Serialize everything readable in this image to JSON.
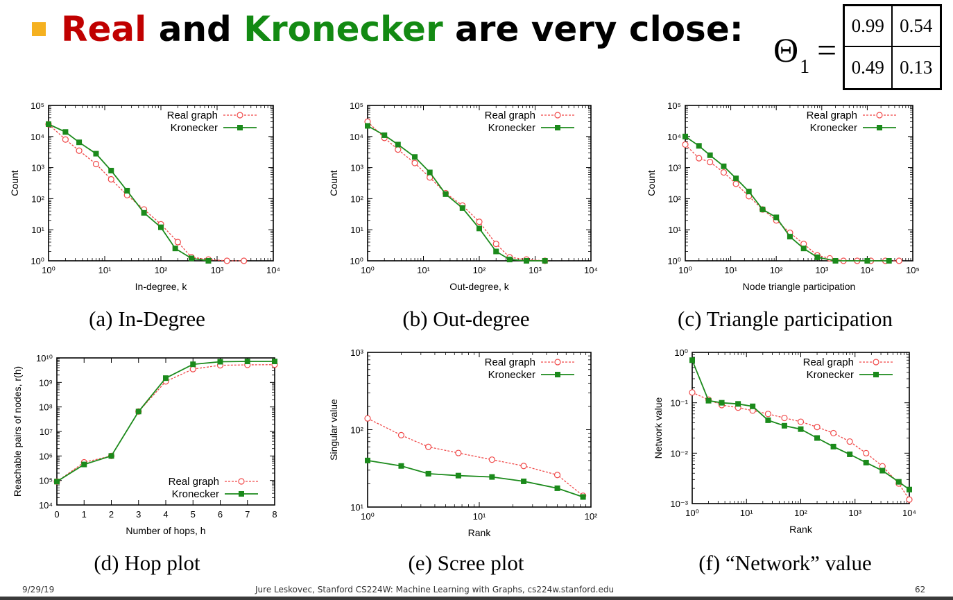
{
  "title": {
    "word1": "Real",
    "word2": " and ",
    "word3": "Kronecker",
    "word4": " are very close:"
  },
  "theta": {
    "symbol": "Θ",
    "subscript": "1",
    "equals": "=",
    "cells": [
      "0.99",
      "0.54",
      "0.49",
      "0.13"
    ]
  },
  "footer": {
    "date": "9/29/19",
    "center": "Jure Leskovec, Stanford CS224W: Machine Learning with Graphs, cs224w.stanford.edu",
    "page": "62"
  },
  "colors": {
    "real": "#f04848",
    "kronecker": "#1b8a1b",
    "bullet": "#f5b120",
    "title_red": "#c00000",
    "title_green": "#138a13"
  },
  "chart_data": [
    {
      "type": "line",
      "caption": "(a) In-Degree",
      "xlabel": "In-degree, k",
      "ylabel": "Count",
      "xscale": "log",
      "yscale": "log",
      "xlim": [
        1,
        10000
      ],
      "ylim": [
        1,
        100000
      ],
      "legend": "top-right",
      "legend_entries": [
        "Real graph",
        "Kronecker"
      ],
      "series": [
        {
          "name": "Real graph",
          "x": [
            1,
            2,
            3.5,
            7,
            13,
            25,
            50,
            100,
            200,
            350,
            700,
            1500,
            3000
          ],
          "y": [
            25000,
            8000,
            3500,
            1300,
            420,
            130,
            45,
            15,
            4,
            1.3,
            1.1,
            1,
            1
          ]
        },
        {
          "name": "Kronecker",
          "x": [
            1,
            2,
            3.5,
            7,
            13,
            25,
            50,
            100,
            180,
            350,
            700
          ],
          "y": [
            25000,
            14000,
            6500,
            2800,
            800,
            180,
            35,
            12,
            2.5,
            1.2,
            1
          ]
        }
      ]
    },
    {
      "type": "line",
      "caption": "(b) Out-degree",
      "xlabel": "Out-degree, k",
      "ylabel": "Count",
      "xscale": "log",
      "yscale": "log",
      "xlim": [
        1,
        10000
      ],
      "ylim": [
        1,
        100000
      ],
      "legend": "top-right",
      "legend_entries": [
        "Real graph",
        "Kronecker"
      ],
      "series": [
        {
          "name": "Real graph",
          "x": [
            1,
            2,
            3.5,
            7,
            13,
            25,
            50,
            100,
            200,
            350,
            700,
            1500
          ],
          "y": [
            30000,
            9000,
            3800,
            1400,
            480,
            150,
            60,
            18,
            3.5,
            1.3,
            1.1,
            1
          ]
        },
        {
          "name": "Kronecker",
          "x": [
            1,
            2,
            3.5,
            7,
            13,
            25,
            50,
            100,
            200,
            350,
            700,
            1500
          ],
          "y": [
            22000,
            11000,
            5500,
            2200,
            700,
            140,
            50,
            11,
            2,
            1.1,
            1,
            1
          ]
        }
      ]
    },
    {
      "type": "line",
      "caption": "(c) Triangle participation",
      "xlabel": "Node triangle participation",
      "ylabel": "Count",
      "xscale": "log",
      "yscale": "log",
      "xlim": [
        1,
        100000
      ],
      "ylim": [
        1,
        100000
      ],
      "legend": "top-right",
      "legend_entries": [
        "Real graph",
        "Kronecker"
      ],
      "series": [
        {
          "name": "Real graph",
          "x": [
            1,
            2,
            3.5,
            7,
            13,
            25,
            50,
            100,
            200,
            400,
            800,
            1500,
            3000,
            6000,
            12000,
            25000,
            50000
          ],
          "y": [
            5500,
            2000,
            1500,
            700,
            300,
            120,
            45,
            20,
            8,
            3.5,
            1.5,
            1.2,
            1,
            1,
            1,
            1,
            1
          ]
        },
        {
          "name": "Kronecker",
          "x": [
            1,
            2,
            3.5,
            7,
            13,
            25,
            50,
            100,
            200,
            400,
            800,
            2000,
            10000,
            30000
          ],
          "y": [
            10000,
            5000,
            2500,
            1100,
            450,
            170,
            45,
            25,
            6,
            2.5,
            1.3,
            1,
            1,
            1
          ]
        }
      ]
    },
    {
      "type": "line",
      "caption": "(d) Hop plot",
      "xlabel": "Number of hops, h",
      "ylabel": "Reachable pairs of nodes, r(h)",
      "xscale": "linear",
      "yscale": "log",
      "xlim": [
        0,
        8
      ],
      "ylim": [
        10000,
        10000000000
      ],
      "legend": "bottom-right",
      "legend_entries": [
        "Real graph",
        "Kronecker"
      ],
      "series": [
        {
          "name": "Real graph",
          "x": [
            0,
            1,
            2,
            3,
            4,
            5,
            6,
            7,
            8
          ],
          "y": [
            90000,
            550000,
            1000000,
            65000000,
            1100000000,
            3500000000,
            5000000000,
            5200000000,
            5300000000
          ]
        },
        {
          "name": "Kronecker",
          "x": [
            0,
            1,
            2,
            3,
            4,
            5,
            6,
            7,
            8
          ],
          "y": [
            90000,
            450000,
            1000000,
            65000000,
            1500000000,
            5500000000,
            7000000000,
            7200000000,
            7200000000
          ]
        }
      ]
    },
    {
      "type": "line",
      "caption": "(e) Scree plot",
      "xlabel": "Rank",
      "ylabel": "Singular value",
      "xscale": "log",
      "yscale": "log",
      "xlim": [
        1,
        100
      ],
      "ylim": [
        10,
        1000
      ],
      "legend": "top-right",
      "legend_entries": [
        "Real graph",
        "Kronecker"
      ],
      "series": [
        {
          "name": "Real graph",
          "x": [
            1,
            2,
            3.5,
            6.5,
            13,
            25,
            50,
            85
          ],
          "y": [
            140,
            85,
            60,
            50,
            41,
            34,
            26,
            14
          ]
        },
        {
          "name": "Kronecker",
          "x": [
            1,
            2,
            3.5,
            6.5,
            13,
            25,
            50,
            85
          ],
          "y": [
            40,
            34,
            27,
            25.5,
            24.5,
            21.5,
            17.5,
            13.5
          ]
        }
      ]
    },
    {
      "type": "line",
      "caption": "(f) “Network” value",
      "xlabel": "Rank",
      "ylabel": "Network value",
      "xscale": "log",
      "yscale": "log",
      "xlim": [
        1,
        10000
      ],
      "ylim": [
        0.001,
        1
      ],
      "legend": "top-right",
      "legend_entries": [
        "Real graph",
        "Kronecker"
      ],
      "series": [
        {
          "name": "Real graph",
          "x": [
            1,
            2,
            3.5,
            7,
            13,
            25,
            50,
            100,
            200,
            400,
            800,
            1600,
            3200,
            6400,
            10000
          ],
          "y": [
            0.16,
            0.115,
            0.09,
            0.08,
            0.07,
            0.06,
            0.05,
            0.042,
            0.033,
            0.025,
            0.017,
            0.01,
            0.0055,
            0.0025,
            0.0012
          ]
        },
        {
          "name": "Kronecker",
          "x": [
            1,
            2,
            3.5,
            7,
            13,
            25,
            50,
            100,
            200,
            400,
            800,
            1600,
            3200,
            6400,
            10000
          ],
          "y": [
            0.7,
            0.11,
            0.1,
            0.095,
            0.085,
            0.045,
            0.035,
            0.03,
            0.02,
            0.0135,
            0.0095,
            0.0065,
            0.0045,
            0.0027,
            0.0019
          ]
        }
      ]
    }
  ]
}
